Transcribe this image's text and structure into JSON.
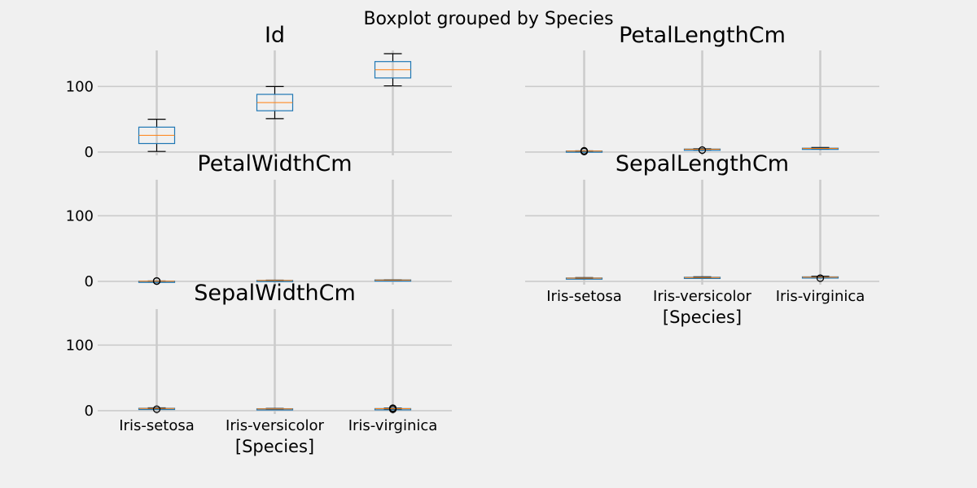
{
  "chart_data": {
    "type": "boxplot",
    "title": "Boxplot grouped by Species",
    "categories": [
      "Iris-setosa",
      "Iris-versicolor",
      "Iris-virginica"
    ],
    "xlabel": "[Species]",
    "ylim": [
      -5,
      155
    ],
    "yticks": [
      0,
      100
    ],
    "grid": true,
    "colors": {
      "background": "#f0f0f0",
      "grid": "#cbcbcb",
      "box": "#1f77b4",
      "median": "#ff7f0e",
      "whisker": "#000000"
    },
    "panels": [
      {
        "title": "Id",
        "boxes": [
          {
            "category": "Iris-setosa",
            "min": 1,
            "q1": 13,
            "median": 25.5,
            "q3": 38,
            "max": 50,
            "outliers": []
          },
          {
            "category": "Iris-versicolor",
            "min": 51,
            "q1": 63,
            "median": 75.5,
            "q3": 88,
            "max": 100,
            "outliers": []
          },
          {
            "category": "Iris-virginica",
            "min": 101,
            "q1": 113,
            "median": 125.5,
            "q3": 138,
            "max": 150,
            "outliers": []
          }
        ]
      },
      {
        "title": "PetalLengthCm",
        "boxes": [
          {
            "category": "Iris-setosa",
            "min": 1.0,
            "q1": 1.4,
            "median": 1.5,
            "q3": 1.6,
            "max": 1.9,
            "outliers": [
              1.0,
              1.1,
              1.9
            ]
          },
          {
            "category": "Iris-versicolor",
            "min": 3.0,
            "q1": 4.0,
            "median": 4.35,
            "q3": 4.6,
            "max": 5.1,
            "outliers": [
              3.0
            ]
          },
          {
            "category": "Iris-virginica",
            "min": 4.5,
            "q1": 5.1,
            "median": 5.55,
            "q3": 5.9,
            "max": 6.9,
            "outliers": []
          }
        ]
      },
      {
        "title": "PetalWidthCm",
        "boxes": [
          {
            "category": "Iris-setosa",
            "min": 0.1,
            "q1": 0.2,
            "median": 0.2,
            "q3": 0.3,
            "max": 0.6,
            "outliers": [
              0.5,
              0.6
            ]
          },
          {
            "category": "Iris-versicolor",
            "min": 1.0,
            "q1": 1.2,
            "median": 1.3,
            "q3": 1.5,
            "max": 1.8,
            "outliers": []
          },
          {
            "category": "Iris-virginica",
            "min": 1.4,
            "q1": 1.8,
            "median": 2.0,
            "q3": 2.3,
            "max": 2.5,
            "outliers": []
          }
        ]
      },
      {
        "title": "SepalLengthCm",
        "boxes": [
          {
            "category": "Iris-setosa",
            "min": 4.3,
            "q1": 4.8,
            "median": 5.0,
            "q3": 5.2,
            "max": 5.8,
            "outliers": []
          },
          {
            "category": "Iris-versicolor",
            "min": 4.9,
            "q1": 5.6,
            "median": 5.9,
            "q3": 6.3,
            "max": 7.0,
            "outliers": []
          },
          {
            "category": "Iris-virginica",
            "min": 5.6,
            "q1": 6.2,
            "median": 6.5,
            "q3": 6.9,
            "max": 7.9,
            "outliers": [
              4.9
            ]
          }
        ]
      },
      {
        "title": "SepalWidthCm",
        "boxes": [
          {
            "category": "Iris-setosa",
            "min": 2.9,
            "q1": 3.2,
            "median": 3.4,
            "q3": 3.7,
            "max": 4.4,
            "outliers": [
              2.3
            ]
          },
          {
            "category": "Iris-versicolor",
            "min": 2.0,
            "q1": 2.5,
            "median": 2.8,
            "q3": 3.0,
            "max": 3.4,
            "outliers": []
          },
          {
            "category": "Iris-virginica",
            "min": 2.2,
            "q1": 2.8,
            "median": 3.0,
            "q3": 3.2,
            "max": 3.8,
            "outliers": [
              2.2,
              3.8
            ]
          }
        ]
      }
    ]
  }
}
